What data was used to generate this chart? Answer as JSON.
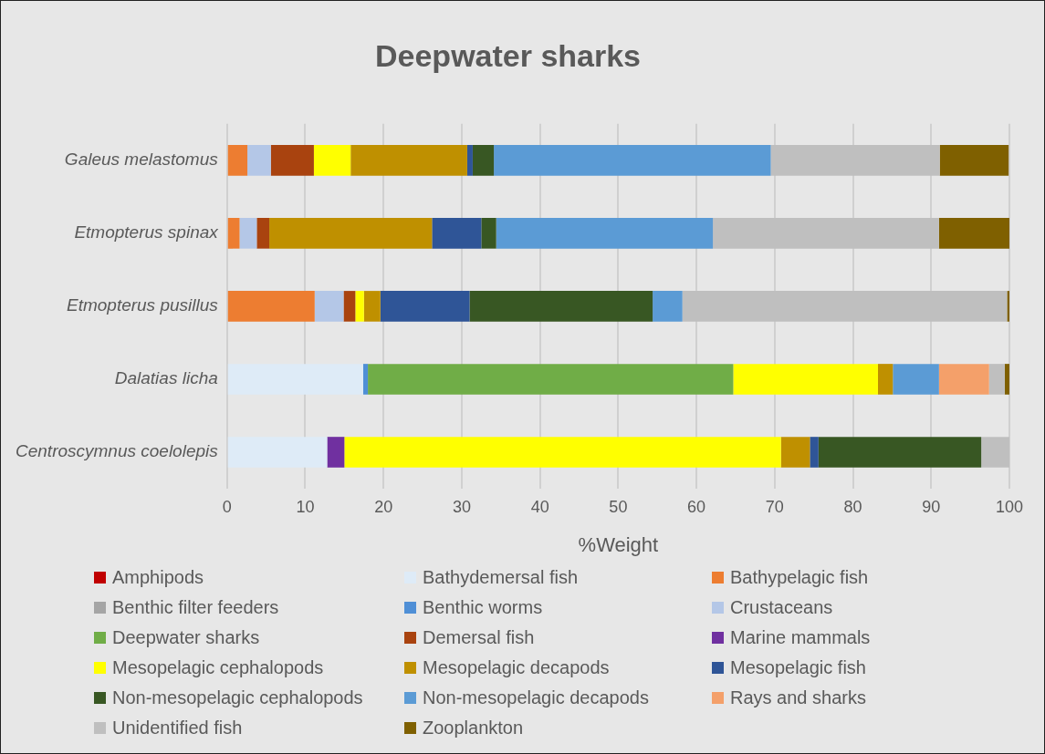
{
  "chart_data": {
    "type": "bar",
    "orientation": "horizontal",
    "stacked": true,
    "title": "Deepwater sharks",
    "xlabel": "%Weight",
    "categories": [
      "Galeus melastomus",
      "Etmopterus spinax",
      "Etmopterus pusillus",
      "Dalatias licha",
      "Centroscymnus coelolepis"
    ],
    "xlim": [
      0,
      100
    ],
    "xticks": [
      0,
      10,
      20,
      30,
      40,
      50,
      60,
      70,
      80,
      90,
      100
    ],
    "grid": "x",
    "legend": "bottom",
    "series": [
      {
        "name": "Amphipods",
        "color": "#c00000",
        "values": [
          null,
          null,
          null,
          null,
          null
        ]
      },
      {
        "name": "Bathydemersal fish",
        "color": "#deebf7",
        "values": [
          null,
          null,
          null,
          17.4,
          12.8
        ]
      },
      {
        "name": "Bathypelagic fish",
        "color": "#ed7d31",
        "values": [
          2.6,
          1.6,
          11.2,
          null,
          null
        ]
      },
      {
        "name": "Benthic filter feeders",
        "color": "#a5a5a5",
        "values": [
          null,
          null,
          null,
          null,
          null
        ]
      },
      {
        "name": "Benthic worms",
        "color": "#4f8fd6",
        "values": [
          null,
          null,
          null,
          0.6,
          null
        ]
      },
      {
        "name": "Crustaceans",
        "color": "#b4c7e7",
        "values": [
          3.0,
          2.2,
          3.7,
          null,
          null
        ]
      },
      {
        "name": "Deepwater sharks",
        "color": "#70ad47",
        "values": [
          null,
          null,
          null,
          46.7,
          null
        ]
      },
      {
        "name": "Demersal fish",
        "color": "#a9430f",
        "values": [
          5.5,
          1.6,
          1.5,
          null,
          null
        ]
      },
      {
        "name": "Marine mammals",
        "color": "#7030a0",
        "values": [
          null,
          null,
          null,
          null,
          2.2
        ]
      },
      {
        "name": "Mesopelagic cephalopods",
        "color": "#ffff00",
        "values": [
          4.7,
          null,
          1.1,
          18.5,
          55.8
        ]
      },
      {
        "name": "Mesopelagic decapods",
        "color": "#bf9000",
        "values": [
          14.9,
          20.8,
          2.1,
          1.9,
          3.7
        ]
      },
      {
        "name": "Mesopelagic fish",
        "color": "#2f5597",
        "values": [
          0.7,
          6.3,
          11.4,
          null,
          1.1
        ]
      },
      {
        "name": "Non-mesopelagic cephalopods",
        "color": "#385723",
        "values": [
          2.7,
          1.9,
          23.4,
          null,
          20.8
        ]
      },
      {
        "name": "Non-mesopelagic decapods",
        "color": "#5b9bd5",
        "values": [
          35.4,
          27.7,
          3.8,
          5.9,
          null
        ]
      },
      {
        "name": "Rays and sharks",
        "color": "#f4a06a",
        "values": [
          null,
          null,
          null,
          6.4,
          null
        ]
      },
      {
        "name": "Unidentified fish",
        "color": "#bfbfbf",
        "values": [
          21.6,
          28.9,
          41.5,
          2.0,
          3.6
        ]
      },
      {
        "name": "Zooplankton",
        "color": "#7f6000",
        "values": [
          8.8,
          9.0,
          0.3,
          0.6,
          null
        ]
      }
    ]
  }
}
